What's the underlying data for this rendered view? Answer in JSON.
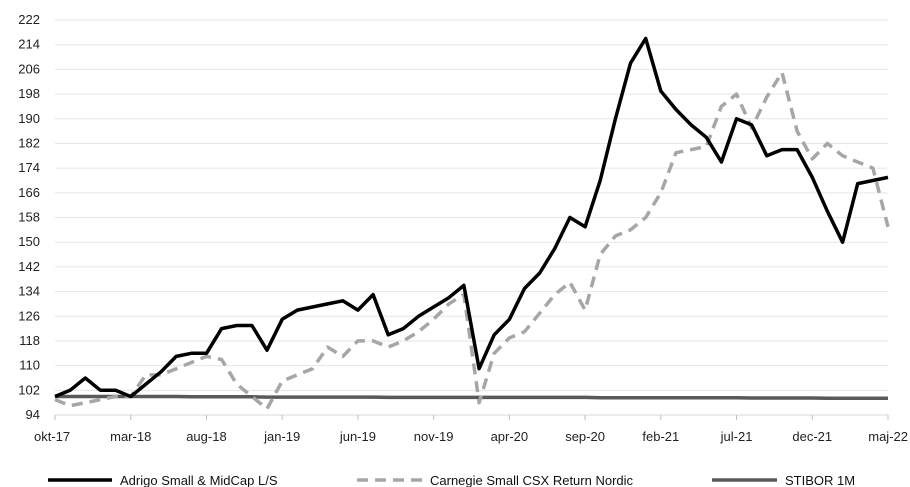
{
  "chart_data": {
    "type": "line",
    "title": "",
    "xlabel": "",
    "ylabel": "",
    "ylim": [
      94,
      222
    ],
    "y_ticks": [
      94,
      102,
      110,
      118,
      126,
      134,
      142,
      150,
      158,
      166,
      174,
      182,
      190,
      198,
      206,
      214,
      222
    ],
    "x_ticks": [
      "okt-17",
      "mar-18",
      "aug-18",
      "jan-19",
      "jun-19",
      "nov-19",
      "apr-20",
      "sep-20",
      "feb-21",
      "jul-21",
      "dec-21",
      "maj-22"
    ],
    "x_tick_index": [
      0,
      5,
      10,
      15,
      20,
      25,
      30,
      35,
      40,
      45,
      50,
      55
    ],
    "grid": "horizontal",
    "legend_position": "bottom",
    "series": [
      {
        "name": "Adrigo Small & MidCap L/S",
        "color": "#000000",
        "dash": "solid",
        "values": [
          100,
          102,
          106,
          102,
          102,
          100,
          104,
          108,
          113,
          114,
          114,
          122,
          123,
          123,
          115,
          125,
          128,
          129,
          130,
          131,
          128,
          133,
          120,
          122,
          126,
          129,
          132,
          136,
          109,
          120,
          125,
          135,
          140,
          148,
          158,
          155,
          170,
          190,
          208,
          216,
          199,
          193,
          188,
          184,
          176,
          190,
          188,
          178,
          180,
          180,
          171,
          160,
          150,
          169,
          170,
          171
        ]
      },
      {
        "name": "Carnegie Small CSX Return Nordic",
        "color": "#a6a6a6",
        "dash": "dashed",
        "values": [
          99,
          97,
          98,
          99,
          100,
          100,
          107,
          107,
          109,
          111,
          113,
          112,
          104,
          100,
          96,
          105,
          107,
          109,
          116,
          113,
          118,
          118,
          116,
          118,
          121,
          125,
          130,
          133,
          98,
          114,
          119,
          121,
          127,
          133,
          137,
          128,
          146,
          152,
          154,
          158,
          166,
          179,
          180,
          181,
          194,
          198,
          187,
          197,
          205,
          186,
          177,
          182,
          178,
          176,
          174,
          155
        ]
      },
      {
        "name": "STIBOR 1M",
        "color": "#595959",
        "dash": "solid",
        "values": [
          100,
          100,
          100,
          100,
          100,
          100,
          100,
          100,
          100,
          99.9,
          99.9,
          99.9,
          99.9,
          99.9,
          99.8,
          99.8,
          99.8,
          99.8,
          99.8,
          99.8,
          99.8,
          99.8,
          99.7,
          99.7,
          99.7,
          99.7,
          99.7,
          99.7,
          99.7,
          99.7,
          99.7,
          99.7,
          99.7,
          99.7,
          99.7,
          99.7,
          99.6,
          99.6,
          99.6,
          99.6,
          99.6,
          99.6,
          99.6,
          99.6,
          99.6,
          99.6,
          99.5,
          99.5,
          99.5,
          99.5,
          99.5,
          99.4,
          99.4,
          99.4,
          99.4,
          99.4
        ]
      }
    ]
  }
}
